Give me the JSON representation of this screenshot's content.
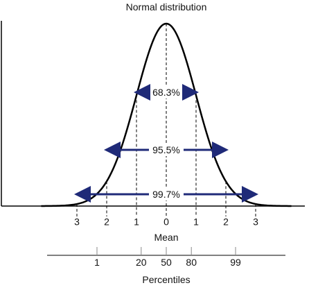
{
  "title": "Normal distribution",
  "colors": {
    "curve": "#000000",
    "arrow": "#1f2a78",
    "axis": "#000000"
  },
  "sd_axis": {
    "ticks": [
      {
        "sd": -3,
        "label": "3"
      },
      {
        "sd": -2,
        "label": "2"
      },
      {
        "sd": -1,
        "label": "1"
      },
      {
        "sd": 0,
        "label": "0"
      },
      {
        "sd": 1,
        "label": "1"
      },
      {
        "sd": 2,
        "label": "2"
      },
      {
        "sd": 3,
        "label": "3"
      }
    ],
    "mean_label": "Mean"
  },
  "bands": [
    {
      "sd": 1,
      "label": "68.3%"
    },
    {
      "sd": 2,
      "label": "95.5%"
    },
    {
      "sd": 3,
      "label": "99.7%"
    }
  ],
  "percentile_axis": {
    "ticks": [
      {
        "sd": -2.326,
        "label": "1"
      },
      {
        "sd": -0.842,
        "label": "20"
      },
      {
        "sd": 0,
        "label": "50"
      },
      {
        "sd": 0.842,
        "label": "80"
      },
      {
        "sd": 2.326,
        "label": "99"
      }
    ],
    "label": "Percentiles"
  }
}
